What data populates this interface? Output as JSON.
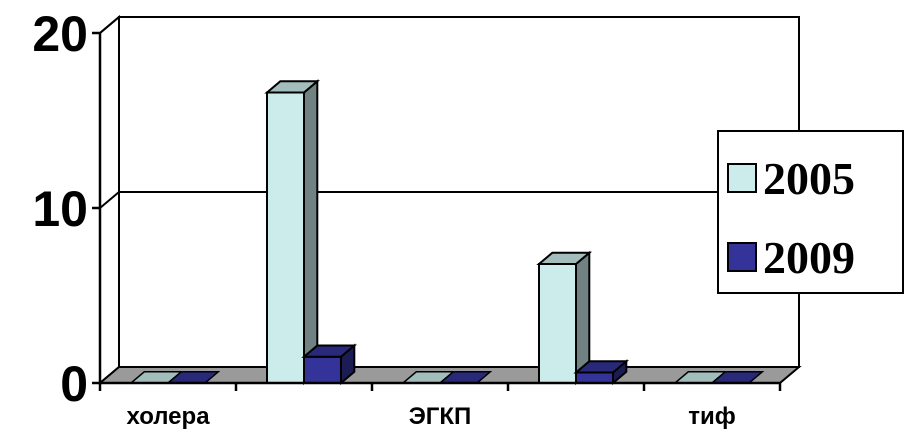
{
  "chart_data": {
    "type": "bar",
    "title": "",
    "xlabel": "",
    "ylabel": "",
    "categories": [
      "холера",
      "",
      "ЭГКП",
      "",
      "тиф"
    ],
    "series": [
      {
        "name": "2005",
        "values": [
          0,
          16.6,
          0,
          6.8,
          0
        ],
        "color": "#ccecec"
      },
      {
        "name": "2009",
        "values": [
          0,
          1.5,
          0,
          0.6,
          0
        ],
        "color": "#333399"
      }
    ],
    "ylim": [
      0,
      20
    ],
    "yticks": [
      "0",
      "10",
      "20"
    ],
    "grid": true,
    "legend_position": "right",
    "three_d": true
  }
}
